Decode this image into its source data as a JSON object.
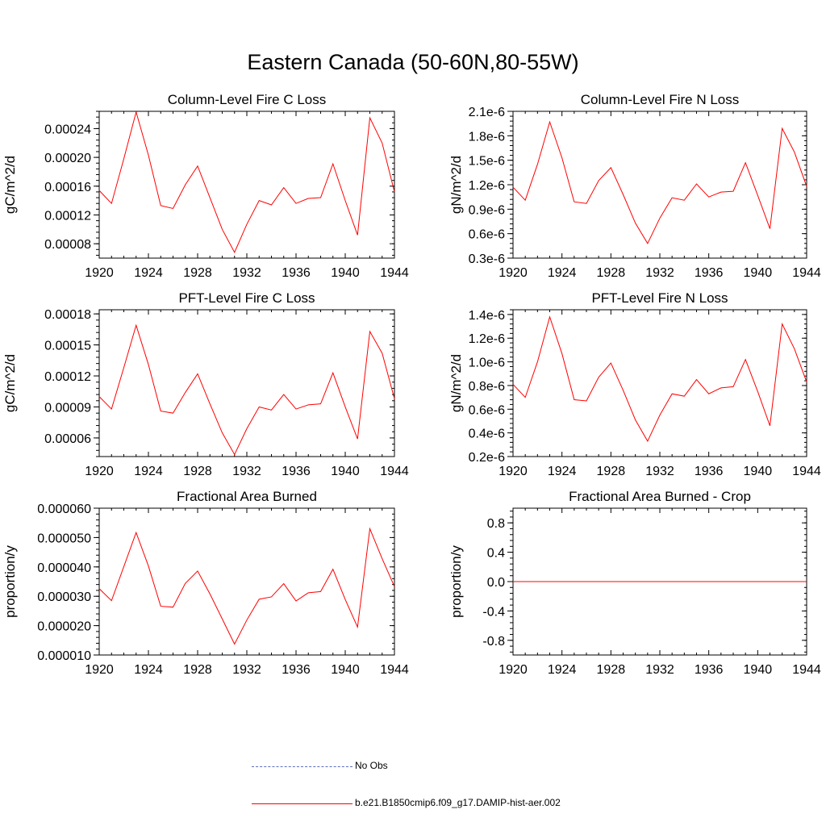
{
  "figure": {
    "title": "Eastern Canada (50-60N,80-55W)"
  },
  "legend": {
    "items": [
      {
        "label": "No Obs",
        "color": "#5b6fbf",
        "style": "dashed"
      },
      {
        "label": "b.e21.B1850cmip6.f09_g17.DAMIP-hist-aer.002",
        "color": "#ff0000",
        "style": "solid"
      }
    ]
  },
  "chart_data": [
    {
      "type": "line",
      "title": "Column-Level Fire C Loss",
      "ylabel": "gC/m^2/d",
      "xlim": [
        1920,
        1944
      ],
      "ylim": [
        6e-05,
        0.000264
      ],
      "xticks": [
        1920,
        1924,
        1928,
        1932,
        1936,
        1940,
        1944
      ],
      "xtick_labels": [
        "1920",
        "1924",
        "1928",
        "1932",
        "1936",
        "1940",
        "1944"
      ],
      "yticks": [
        8e-05,
        0.00012,
        0.00016,
        0.0002,
        0.00024
      ],
      "ytick_labels": [
        "0.00008",
        "0.00012",
        "0.00016",
        "0.00020",
        "0.00024"
      ],
      "x": [
        1920,
        1921,
        1922,
        1923,
        1924,
        1925,
        1926,
        1927,
        1928,
        1929,
        1930,
        1931,
        1932,
        1933,
        1934,
        1935,
        1936,
        1937,
        1938,
        1939,
        1940,
        1941,
        1942,
        1943,
        1944
      ],
      "series": [
        {
          "color": "#ff0000",
          "values": [
            0.000154,
            0.000136,
            0.000198,
            0.000263,
            0.000203,
            0.000133,
            0.000129,
            0.000162,
            0.000188,
            0.000144,
            0.0001,
            6.8e-05,
            0.000107,
            0.00014,
            0.000134,
            0.000158,
            0.000136,
            0.000143,
            0.000144,
            0.000191,
            0.00014,
            9.2e-05,
            0.000255,
            0.00022,
            0.000152
          ]
        }
      ]
    },
    {
      "type": "line",
      "title": "Column-Level Fire N Loss",
      "ylabel": "gN/m^2/d",
      "xlim": [
        1920,
        1944
      ],
      "ylim": [
        3e-07,
        2.1e-06
      ],
      "xticks": [
        1920,
        1924,
        1928,
        1932,
        1936,
        1940,
        1944
      ],
      "xtick_labels": [
        "1920",
        "1924",
        "1928",
        "1932",
        "1936",
        "1940",
        "1944"
      ],
      "yticks": [
        3e-07,
        6e-07,
        9e-07,
        1.2e-06,
        1.5e-06,
        1.8e-06,
        2.1e-06
      ],
      "ytick_labels": [
        "0.3e-6",
        "0.6e-6",
        "0.9e-6",
        "1.2e-6",
        "1.5e-6",
        "1.8e-6",
        "2.1e-6"
      ],
      "x": [
        1920,
        1921,
        1922,
        1923,
        1924,
        1925,
        1926,
        1927,
        1928,
        1929,
        1930,
        1931,
        1932,
        1933,
        1934,
        1935,
        1936,
        1937,
        1938,
        1939,
        1940,
        1941,
        1942,
        1943,
        1944
      ],
      "series": [
        {
          "color": "#ff0000",
          "values": [
            1.17e-06,
            1.01e-06,
            1.45e-06,
            1.97e-06,
            1.53e-06,
            9.9e-07,
            9.7e-07,
            1.25e-06,
            1.41e-06,
            1.08e-06,
            7.3e-07,
            4.8e-07,
            7.9e-07,
            1.04e-06,
            1.01e-06,
            1.21e-06,
            1.05e-06,
            1.11e-06,
            1.12e-06,
            1.47e-06,
            1.07e-06,
            6.6e-07,
            1.89e-06,
            1.6e-06,
            1.18e-06
          ]
        }
      ]
    },
    {
      "type": "line",
      "title": "PFT-Level Fire C Loss",
      "ylabel": "gC/m^2/d",
      "xlim": [
        1920,
        1944
      ],
      "ylim": [
        4.2e-05,
        0.000184
      ],
      "xticks": [
        1920,
        1924,
        1928,
        1932,
        1936,
        1940,
        1944
      ],
      "xtick_labels": [
        "1920",
        "1924",
        "1928",
        "1932",
        "1936",
        "1940",
        "1944"
      ],
      "yticks": [
        6e-05,
        9e-05,
        0.00012,
        0.00015,
        0.00018
      ],
      "ytick_labels": [
        "0.00006",
        "0.00009",
        "0.00012",
        "0.00015",
        "0.00018"
      ],
      "x": [
        1920,
        1921,
        1922,
        1923,
        1924,
        1925,
        1926,
        1927,
        1928,
        1929,
        1930,
        1931,
        1932,
        1933,
        1934,
        1935,
        1936,
        1937,
        1938,
        1939,
        1940,
        1941,
        1942,
        1943,
        1944
      ],
      "series": [
        {
          "color": "#ff0000",
          "values": [
            0.0001,
            8.8e-05,
            0.000128,
            0.000169,
            0.000131,
            8.6e-05,
            8.4e-05,
            0.000104,
            0.000122,
            9.3e-05,
            6.5e-05,
            4.4e-05,
            6.9e-05,
            9e-05,
            8.7e-05,
            0.000102,
            8.8e-05,
            9.2e-05,
            9.3e-05,
            0.000123,
            9e-05,
            5.9e-05,
            0.000163,
            0.000142,
            9.8e-05
          ]
        }
      ]
    },
    {
      "type": "line",
      "title": "PFT-Level Fire N Loss",
      "ylabel": "gN/m^2/d",
      "xlim": [
        1920,
        1944
      ],
      "ylim": [
        2e-07,
        1.44e-06
      ],
      "xticks": [
        1920,
        1924,
        1928,
        1932,
        1936,
        1940,
        1944
      ],
      "xtick_labels": [
        "1920",
        "1924",
        "1928",
        "1932",
        "1936",
        "1940",
        "1944"
      ],
      "yticks": [
        2e-07,
        4e-07,
        6e-07,
        8e-07,
        1e-06,
        1.2e-06,
        1.4e-06
      ],
      "ytick_labels": [
        "0.2e-6",
        "0.4e-6",
        "0.6e-6",
        "0.8e-6",
        "1.0e-6",
        "1.2e-6",
        "1.4e-6"
      ],
      "x": [
        1920,
        1921,
        1922,
        1923,
        1924,
        1925,
        1926,
        1927,
        1928,
        1929,
        1930,
        1931,
        1932,
        1933,
        1934,
        1935,
        1936,
        1937,
        1938,
        1939,
        1940,
        1941,
        1942,
        1943,
        1944
      ],
      "series": [
        {
          "color": "#ff0000",
          "values": [
            8.1e-07,
            7e-07,
            1e-06,
            1.38e-06,
            1.07e-06,
            6.8e-07,
            6.7e-07,
            8.7e-07,
            9.9e-07,
            7.6e-07,
            5.1e-07,
            3.3e-07,
            5.5e-07,
            7.3e-07,
            7.1e-07,
            8.5e-07,
            7.3e-07,
            7.8e-07,
            7.9e-07,
            1.02e-06,
            7.5e-07,
            4.6e-07,
            1.32e-06,
            1.11e-06,
            8.3e-07
          ]
        }
      ]
    },
    {
      "type": "line",
      "title": "Fractional Area Burned",
      "ylabel": "proportion/y",
      "xlim": [
        1920,
        1944
      ],
      "ylim": [
        1e-05,
        6e-05
      ],
      "xticks": [
        1920,
        1924,
        1928,
        1932,
        1936,
        1940,
        1944
      ],
      "xtick_labels": [
        "1920",
        "1924",
        "1928",
        "1932",
        "1936",
        "1940",
        "1944"
      ],
      "yticks": [
        1e-05,
        2e-05,
        3e-05,
        4e-05,
        5e-05,
        6e-05
      ],
      "ytick_labels": [
        "0.000010",
        "0.000020",
        "0.000030",
        "0.000040",
        "0.000050",
        "0.000060"
      ],
      "x": [
        1920,
        1921,
        1922,
        1923,
        1924,
        1925,
        1926,
        1927,
        1928,
        1929,
        1930,
        1931,
        1932,
        1933,
        1934,
        1935,
        1936,
        1937,
        1938,
        1939,
        1940,
        1941,
        1942,
        1943,
        1944
      ],
      "series": [
        {
          "color": "#ff0000",
          "values": [
            3.26e-05,
            2.85e-05,
            4.01e-05,
            5.17e-05,
            4.03e-05,
            2.66e-05,
            2.63e-05,
            3.44e-05,
            3.86e-05,
            3.08e-05,
            2.23e-05,
            1.37e-05,
            2.19e-05,
            2.9e-05,
            2.98e-05,
            3.43e-05,
            2.84e-05,
            3.12e-05,
            3.16e-05,
            3.92e-05,
            2.89e-05,
            1.95e-05,
            5.3e-05,
            4.28e-05,
            3.33e-05
          ]
        }
      ]
    },
    {
      "type": "line",
      "title": "Fractional Area Burned - Crop",
      "ylabel": "proportion/y",
      "xlim": [
        1920,
        1944
      ],
      "ylim": [
        -1.0,
        1.0
      ],
      "xticks": [
        1920,
        1924,
        1928,
        1932,
        1936,
        1940,
        1944
      ],
      "xtick_labels": [
        "1920",
        "1924",
        "1928",
        "1932",
        "1936",
        "1940",
        "1944"
      ],
      "yticks": [
        -0.8,
        -0.4,
        0.0,
        0.4,
        0.8
      ],
      "ytick_labels": [
        "-0.8",
        "-0.4",
        "0.0",
        "0.4",
        "0.8"
      ],
      "x": [
        1920,
        1921,
        1922,
        1923,
        1924,
        1925,
        1926,
        1927,
        1928,
        1929,
        1930,
        1931,
        1932,
        1933,
        1934,
        1935,
        1936,
        1937,
        1938,
        1939,
        1940,
        1941,
        1942,
        1943,
        1944
      ],
      "series": [
        {
          "color": "#ff0000",
          "values": [
            0,
            0,
            0,
            0,
            0,
            0,
            0,
            0,
            0,
            0,
            0,
            0,
            0,
            0,
            0,
            0,
            0,
            0,
            0,
            0,
            0,
            0,
            0,
            0,
            0
          ]
        }
      ]
    }
  ]
}
